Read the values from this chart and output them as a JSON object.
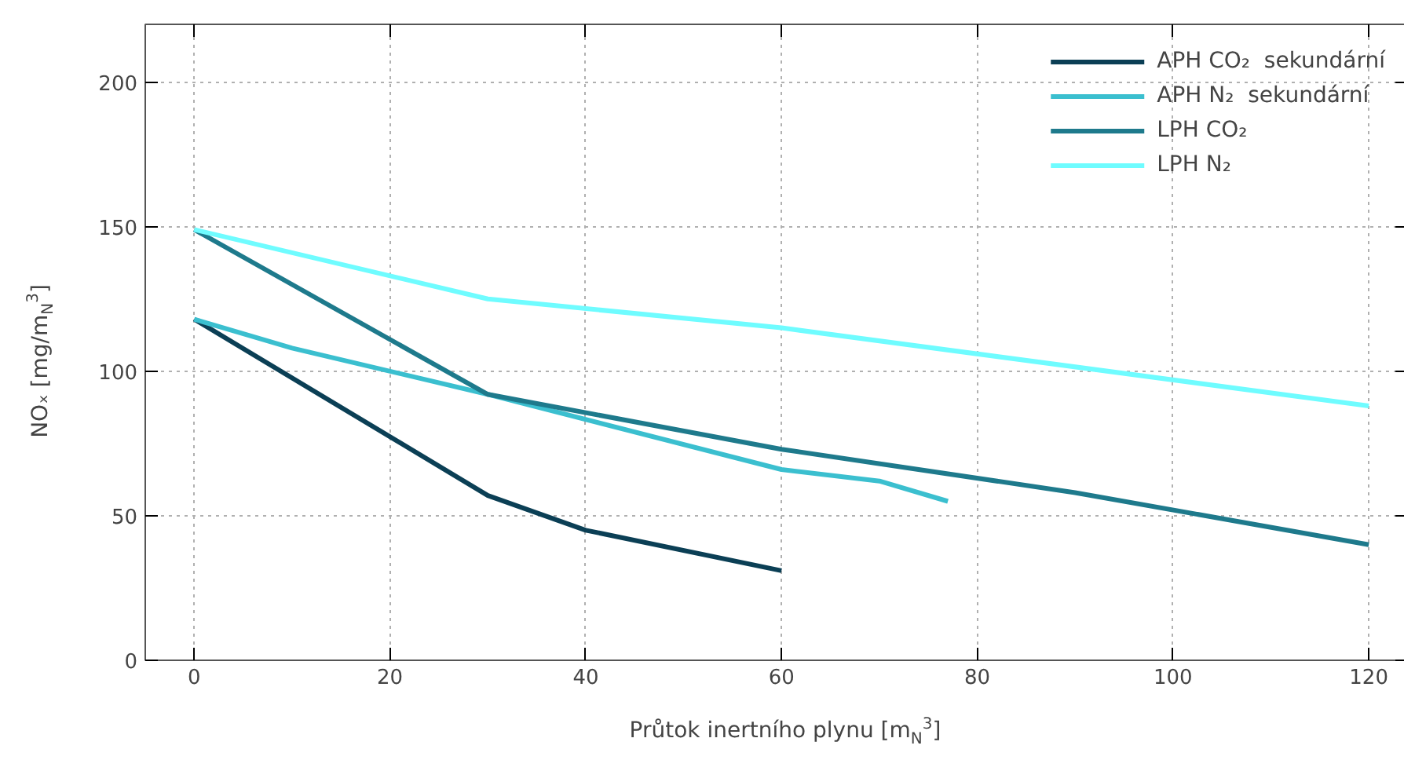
{
  "chart_data": {
    "type": "line",
    "xlabel": "Průtok inertního plynu [m$_{N}$$^{3}$]",
    "ylabel": "NOₓ  [mg/m$_{N}$$^{3}$]",
    "xlim": [
      -5,
      124
    ],
    "ylim": [
      0,
      220
    ],
    "xticks": [
      0,
      20,
      40,
      60,
      80,
      100,
      120
    ],
    "yticks": [
      0,
      50,
      100,
      150,
      200
    ],
    "grid": true,
    "legend": "top right",
    "line_style": "solid",
    "marker": "none",
    "series": [
      {
        "name": "APH CO₂  sekundární",
        "color": "#0b3f55",
        "x": [
          0,
          30,
          40,
          60
        ],
        "values": [
          118,
          57,
          45,
          31
        ]
      },
      {
        "name": "APH N₂  sekundární",
        "color": "#3bbfcf",
        "x": [
          0,
          10,
          30,
          60,
          70,
          77
        ],
        "values": [
          118,
          108,
          92,
          66,
          62,
          55
        ]
      },
      {
        "name": "LPH CO₂",
        "color": "#1e7a8c",
        "x": [
          0,
          30,
          60,
          90,
          120
        ],
        "values": [
          149,
          92,
          73,
          58,
          40
        ]
      },
      {
        "name": "LPH N₂",
        "color": "#6ffcff",
        "x": [
          0,
          30,
          60,
          120
        ],
        "values": [
          149,
          125,
          115,
          88
        ]
      }
    ]
  }
}
